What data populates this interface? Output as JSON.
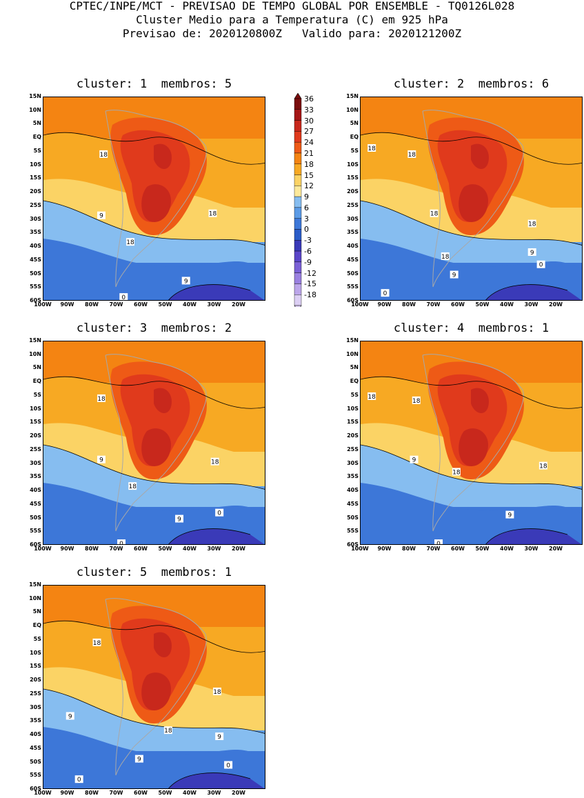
{
  "header": {
    "line1": "CPTEC/INPE/MCT - PREVISAO DE TEMPO GLOBAL POR ENSEMBLE - TQ0126L028",
    "line2": "Cluster Medio para a Temperatura (C) em 925 hPa",
    "line3": "Previsao de: 2020120800Z   Valido para: 2020121200Z"
  },
  "panels": [
    {
      "title": "cluster: 1  membros: 5",
      "labels": [
        "18",
        "18",
        "9",
        "18",
        "9",
        "0"
      ]
    },
    {
      "title": "cluster: 2  membros: 6",
      "labels": [
        "18",
        "18",
        "18",
        "18",
        "18",
        "9",
        "9",
        "0",
        "0"
      ]
    },
    {
      "title": "cluster: 3  membros: 2",
      "labels": [
        "18",
        "9",
        "18",
        "18",
        "9",
        "0",
        "0"
      ]
    },
    {
      "title": "cluster: 4  membros: 1",
      "labels": [
        "18",
        "18",
        "9",
        "18",
        "18",
        "9",
        "0"
      ]
    },
    {
      "title": "cluster: 5  membros: 1",
      "labels": [
        "18",
        "9",
        "18",
        "18",
        "9",
        "9",
        "0",
        "0"
      ]
    }
  ],
  "lat_ticks": [
    "15N",
    "10N",
    "5N",
    "EQ",
    "5S",
    "10S",
    "15S",
    "20S",
    "25S",
    "30S",
    "35S",
    "40S",
    "45S",
    "50S",
    "55S",
    "60S"
  ],
  "lon_ticks": [
    "100W",
    "90W",
    "80W",
    "70W",
    "60W",
    "50W",
    "40W",
    "30W",
    "20W"
  ],
  "colorbar": {
    "labels": [
      "36",
      "33",
      "30",
      "27",
      "24",
      "21",
      "18",
      "15",
      "12",
      "9",
      "6",
      "3",
      "0",
      "-3",
      "-6",
      "-9",
      "-12",
      "-15",
      "-18"
    ],
    "colors": [
      "#7a0d0d",
      "#a51616",
      "#c8281c",
      "#e03a1c",
      "#ee5a16",
      "#f48412",
      "#f7a923",
      "#fbd365",
      "#fce99b",
      "#86bdf0",
      "#5b9be6",
      "#3d77d8",
      "#2a5cc8",
      "#3a3ab8",
      "#5a45c8",
      "#7a60d6",
      "#9a80e0",
      "#bca6ea",
      "#dccff4"
    ]
  }
}
